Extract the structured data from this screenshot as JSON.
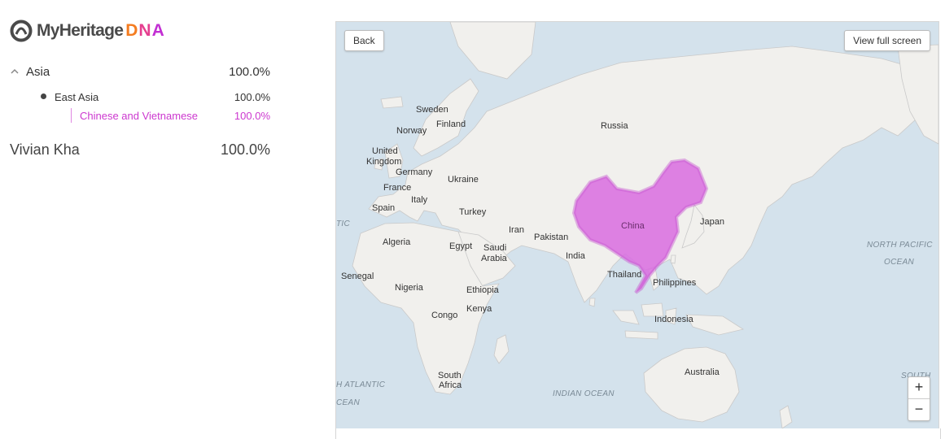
{
  "logo": {
    "brand": "MyHeritage",
    "dna": [
      "D",
      "N",
      "A"
    ],
    "icon": "myheritage-logo-icon"
  },
  "ethnicity": {
    "region": {
      "label": "Asia",
      "value": "100.0%",
      "icon": "chevron-up-icon"
    },
    "subregion": {
      "label": "East Asia",
      "value": "100.0%"
    },
    "ethnicity": {
      "label": "Chinese and Vietnamese",
      "value": "100.0%",
      "color": "#cc38cf"
    },
    "person": {
      "name": "Vivian Kha",
      "value": "100.0%"
    }
  },
  "map": {
    "back_label": "Back",
    "fullscreen_label": "View full screen",
    "zoom_in": "+",
    "zoom_out": "−",
    "highlight_color": "#d96fe0",
    "countries": {
      "sweden": "Sweden",
      "finland": "Finland",
      "norway": "Norway",
      "russia": "Russia",
      "united": "United",
      "kingdom": "Kingdom",
      "germany": "Germany",
      "ukraine": "Ukraine",
      "france": "France",
      "italy": "Italy",
      "spain": "Spain",
      "turkey": "Turkey",
      "iran": "Iran",
      "algeria": "Algeria",
      "egypt": "Egypt",
      "saudi": "Saudi",
      "arabia": "Arabia",
      "pakistan": "Pakistan",
      "india": "India",
      "china": "China",
      "japan": "Japan",
      "senegal": "Senegal",
      "nigeria": "Nigeria",
      "ethiopia": "Ethiopia",
      "thailand": "Thailand",
      "philippines": "Philippines",
      "congo": "Congo",
      "kenya": "Kenya",
      "indonesia": "Indonesia",
      "south": "South",
      "africa": "Africa",
      "australia": "Australia"
    },
    "oceans": {
      "north_pacific": "NORTH PACIFIC",
      "ocean1": "OCEAN",
      "tic": "TIC",
      "h_atlantic": "H ATLANTIC",
      "cean": "CEAN",
      "indian_ocean": "INDIAN OCEAN",
      "south_partial": "SOUTH"
    }
  }
}
